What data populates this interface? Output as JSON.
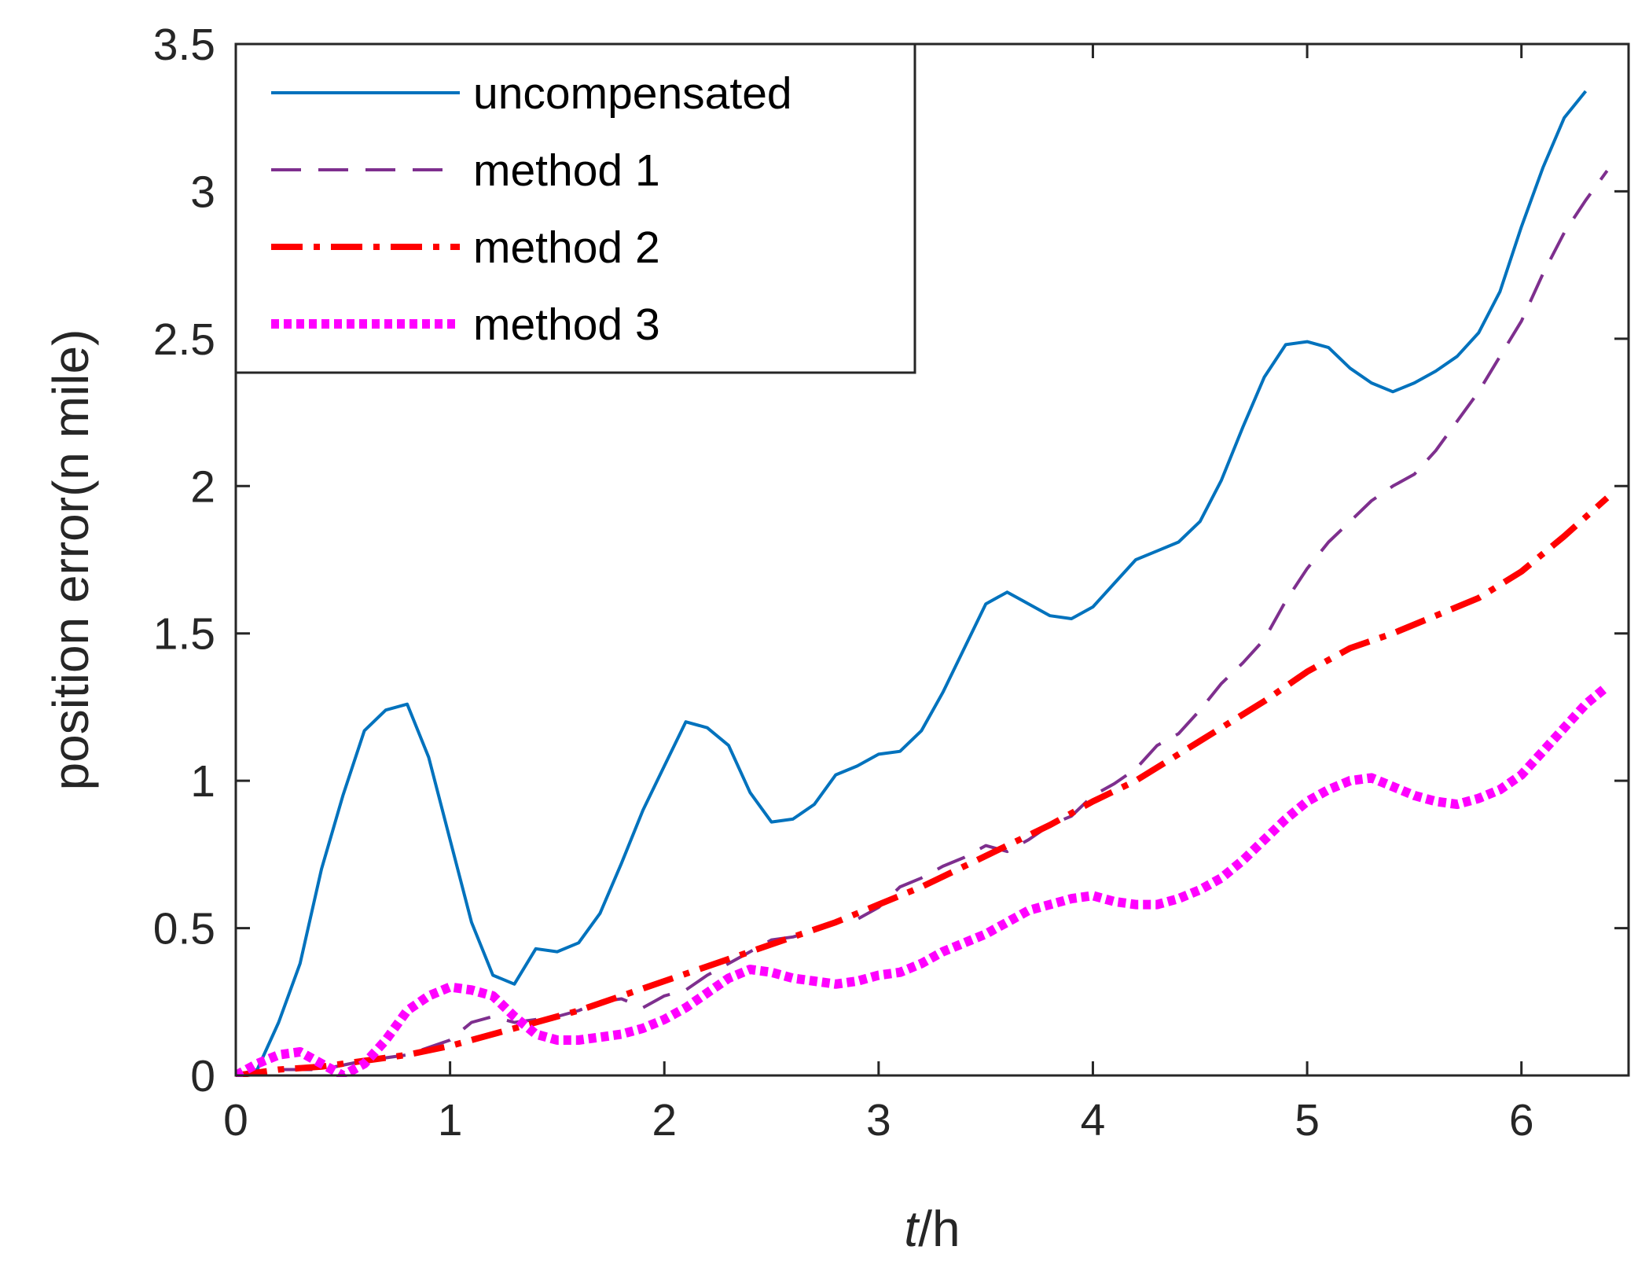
{
  "chart_data": {
    "type": "line",
    "title": "",
    "xlabel_italic": "t",
    "xlabel_rest": "/h",
    "ylabel": "position error(n mile)",
    "xlim": [
      0,
      6.5
    ],
    "ylim": [
      0,
      3.5
    ],
    "xticks": [
      0,
      1,
      2,
      3,
      4,
      5,
      6
    ],
    "xtick_labels": [
      "0",
      "1",
      "2",
      "3",
      "4",
      "5",
      "6"
    ],
    "yticks": [
      0,
      0.5,
      1,
      1.5,
      2,
      2.5,
      3,
      3.5
    ],
    "ytick_labels": [
      "0",
      "0.5",
      "1",
      "1.5",
      "2",
      "2.5",
      "3",
      "3.5"
    ],
    "grid": false,
    "legend_position": "top-left",
    "series": [
      {
        "name": "uncompensated",
        "color": "#0072BD",
        "style": "solid",
        "points": [
          [
            0,
            0
          ],
          [
            0.1,
            0.02
          ],
          [
            0.2,
            0.18
          ],
          [
            0.3,
            0.38
          ],
          [
            0.4,
            0.7
          ],
          [
            0.5,
            0.95
          ],
          [
            0.6,
            1.17
          ],
          [
            0.7,
            1.24
          ],
          [
            0.8,
            1.26
          ],
          [
            0.9,
            1.08
          ],
          [
            1.0,
            0.8
          ],
          [
            1.1,
            0.52
          ],
          [
            1.2,
            0.34
          ],
          [
            1.3,
            0.31
          ],
          [
            1.4,
            0.43
          ],
          [
            1.5,
            0.42
          ],
          [
            1.6,
            0.45
          ],
          [
            1.7,
            0.55
          ],
          [
            1.8,
            0.72
          ],
          [
            1.9,
            0.9
          ],
          [
            2.0,
            1.05
          ],
          [
            2.1,
            1.2
          ],
          [
            2.2,
            1.18
          ],
          [
            2.3,
            1.12
          ],
          [
            2.4,
            0.96
          ],
          [
            2.5,
            0.86
          ],
          [
            2.6,
            0.87
          ],
          [
            2.7,
            0.92
          ],
          [
            2.8,
            1.02
          ],
          [
            2.9,
            1.05
          ],
          [
            3.0,
            1.09
          ],
          [
            3.1,
            1.1
          ],
          [
            3.2,
            1.17
          ],
          [
            3.3,
            1.3
          ],
          [
            3.4,
            1.45
          ],
          [
            3.5,
            1.6
          ],
          [
            3.6,
            1.64
          ],
          [
            3.7,
            1.6
          ],
          [
            3.8,
            1.56
          ],
          [
            3.9,
            1.55
          ],
          [
            4.0,
            1.59
          ],
          [
            4.1,
            1.67
          ],
          [
            4.2,
            1.75
          ],
          [
            4.3,
            1.78
          ],
          [
            4.4,
            1.81
          ],
          [
            4.5,
            1.88
          ],
          [
            4.6,
            2.02
          ],
          [
            4.7,
            2.2
          ],
          [
            4.8,
            2.37
          ],
          [
            4.9,
            2.48
          ],
          [
            5.0,
            2.49
          ],
          [
            5.1,
            2.47
          ],
          [
            5.2,
            2.4
          ],
          [
            5.3,
            2.35
          ],
          [
            5.4,
            2.32
          ],
          [
            5.5,
            2.35
          ],
          [
            5.6,
            2.39
          ],
          [
            5.7,
            2.44
          ],
          [
            5.8,
            2.52
          ],
          [
            5.9,
            2.66
          ],
          [
            6.0,
            2.88
          ],
          [
            6.1,
            3.08
          ],
          [
            6.2,
            3.25
          ],
          [
            6.3,
            3.34
          ]
        ]
      },
      {
        "name": "method 1",
        "color": "#7E2F8E",
        "style": "dashed",
        "points": [
          [
            0,
            0
          ],
          [
            0.2,
            0.02
          ],
          [
            0.4,
            0.02
          ],
          [
            0.6,
            0.05
          ],
          [
            0.8,
            0.07
          ],
          [
            1.0,
            0.12
          ],
          [
            1.1,
            0.18
          ],
          [
            1.2,
            0.2
          ],
          [
            1.3,
            0.18
          ],
          [
            1.4,
            0.19
          ],
          [
            1.5,
            0.2
          ],
          [
            1.6,
            0.22
          ],
          [
            1.7,
            0.25
          ],
          [
            1.8,
            0.26
          ],
          [
            1.9,
            0.23
          ],
          [
            2.0,
            0.27
          ],
          [
            2.1,
            0.29
          ],
          [
            2.2,
            0.34
          ],
          [
            2.3,
            0.38
          ],
          [
            2.4,
            0.42
          ],
          [
            2.5,
            0.46
          ],
          [
            2.6,
            0.47
          ],
          [
            2.7,
            0.49
          ],
          [
            2.8,
            0.52
          ],
          [
            2.9,
            0.53
          ],
          [
            3.0,
            0.57
          ],
          [
            3.1,
            0.64
          ],
          [
            3.2,
            0.67
          ],
          [
            3.3,
            0.71
          ],
          [
            3.4,
            0.74
          ],
          [
            3.5,
            0.78
          ],
          [
            3.6,
            0.76
          ],
          [
            3.7,
            0.8
          ],
          [
            3.8,
            0.85
          ],
          [
            3.9,
            0.88
          ],
          [
            4.0,
            0.95
          ],
          [
            4.1,
            0.99
          ],
          [
            4.2,
            1.04
          ],
          [
            4.3,
            1.12
          ],
          [
            4.4,
            1.16
          ],
          [
            4.5,
            1.24
          ],
          [
            4.6,
            1.33
          ],
          [
            4.7,
            1.4
          ],
          [
            4.8,
            1.48
          ],
          [
            4.9,
            1.61
          ],
          [
            5.0,
            1.72
          ],
          [
            5.1,
            1.81
          ],
          [
            5.2,
            1.88
          ],
          [
            5.3,
            1.95
          ],
          [
            5.4,
            2.0
          ],
          [
            5.5,
            2.04
          ],
          [
            5.6,
            2.12
          ],
          [
            5.7,
            2.22
          ],
          [
            5.8,
            2.32
          ],
          [
            5.9,
            2.44
          ],
          [
            6.0,
            2.56
          ],
          [
            6.1,
            2.72
          ],
          [
            6.2,
            2.86
          ],
          [
            6.3,
            2.97
          ],
          [
            6.4,
            3.07
          ]
        ]
      },
      {
        "name": "method 2",
        "color": "#FF0000",
        "style": "dashdot",
        "points": [
          [
            0,
            0
          ],
          [
            0.2,
            0.02
          ],
          [
            0.4,
            0.03
          ],
          [
            0.6,
            0.05
          ],
          [
            0.8,
            0.07
          ],
          [
            1.0,
            0.1
          ],
          [
            1.2,
            0.14
          ],
          [
            1.4,
            0.18
          ],
          [
            1.6,
            0.22
          ],
          [
            1.8,
            0.27
          ],
          [
            2.0,
            0.32
          ],
          [
            2.2,
            0.37
          ],
          [
            2.4,
            0.42
          ],
          [
            2.6,
            0.47
          ],
          [
            2.8,
            0.52
          ],
          [
            3.0,
            0.58
          ],
          [
            3.2,
            0.64
          ],
          [
            3.4,
            0.71
          ],
          [
            3.6,
            0.78
          ],
          [
            3.8,
            0.85
          ],
          [
            4.0,
            0.93
          ],
          [
            4.2,
            1.0
          ],
          [
            4.4,
            1.09
          ],
          [
            4.6,
            1.18
          ],
          [
            4.8,
            1.27
          ],
          [
            5.0,
            1.37
          ],
          [
            5.2,
            1.45
          ],
          [
            5.4,
            1.5
          ],
          [
            5.6,
            1.56
          ],
          [
            5.8,
            1.62
          ],
          [
            6.0,
            1.71
          ],
          [
            6.2,
            1.83
          ],
          [
            6.4,
            1.96
          ]
        ]
      },
      {
        "name": "method 3",
        "color": "#FF00FF",
        "style": "dotted",
        "points": [
          [
            0,
            0
          ],
          [
            0.1,
            0.04
          ],
          [
            0.2,
            0.07
          ],
          [
            0.3,
            0.08
          ],
          [
            0.4,
            0.04
          ],
          [
            0.5,
            0.0
          ],
          [
            0.6,
            0.04
          ],
          [
            0.7,
            0.12
          ],
          [
            0.8,
            0.22
          ],
          [
            0.9,
            0.27
          ],
          [
            1.0,
            0.3
          ],
          [
            1.1,
            0.29
          ],
          [
            1.2,
            0.27
          ],
          [
            1.3,
            0.2
          ],
          [
            1.4,
            0.14
          ],
          [
            1.5,
            0.12
          ],
          [
            1.6,
            0.12
          ],
          [
            1.7,
            0.13
          ],
          [
            1.8,
            0.14
          ],
          [
            1.9,
            0.16
          ],
          [
            2.0,
            0.19
          ],
          [
            2.1,
            0.23
          ],
          [
            2.2,
            0.28
          ],
          [
            2.3,
            0.33
          ],
          [
            2.4,
            0.36
          ],
          [
            2.5,
            0.35
          ],
          [
            2.6,
            0.33
          ],
          [
            2.7,
            0.32
          ],
          [
            2.8,
            0.31
          ],
          [
            2.9,
            0.32
          ],
          [
            3.0,
            0.34
          ],
          [
            3.1,
            0.35
          ],
          [
            3.2,
            0.38
          ],
          [
            3.3,
            0.42
          ],
          [
            3.4,
            0.45
          ],
          [
            3.5,
            0.48
          ],
          [
            3.6,
            0.52
          ],
          [
            3.7,
            0.56
          ],
          [
            3.8,
            0.58
          ],
          [
            3.9,
            0.6
          ],
          [
            4.0,
            0.61
          ],
          [
            4.1,
            0.59
          ],
          [
            4.2,
            0.58
          ],
          [
            4.3,
            0.58
          ],
          [
            4.4,
            0.6
          ],
          [
            4.5,
            0.63
          ],
          [
            4.6,
            0.67
          ],
          [
            4.7,
            0.73
          ],
          [
            4.8,
            0.8
          ],
          [
            4.9,
            0.87
          ],
          [
            5.0,
            0.93
          ],
          [
            5.1,
            0.97
          ],
          [
            5.2,
            1.0
          ],
          [
            5.3,
            1.01
          ],
          [
            5.4,
            0.98
          ],
          [
            5.5,
            0.95
          ],
          [
            5.6,
            0.93
          ],
          [
            5.7,
            0.92
          ],
          [
            5.8,
            0.94
          ],
          [
            5.9,
            0.97
          ],
          [
            6.0,
            1.02
          ],
          [
            6.1,
            1.1
          ],
          [
            6.2,
            1.18
          ],
          [
            6.3,
            1.26
          ],
          [
            6.4,
            1.32
          ]
        ]
      }
    ]
  }
}
